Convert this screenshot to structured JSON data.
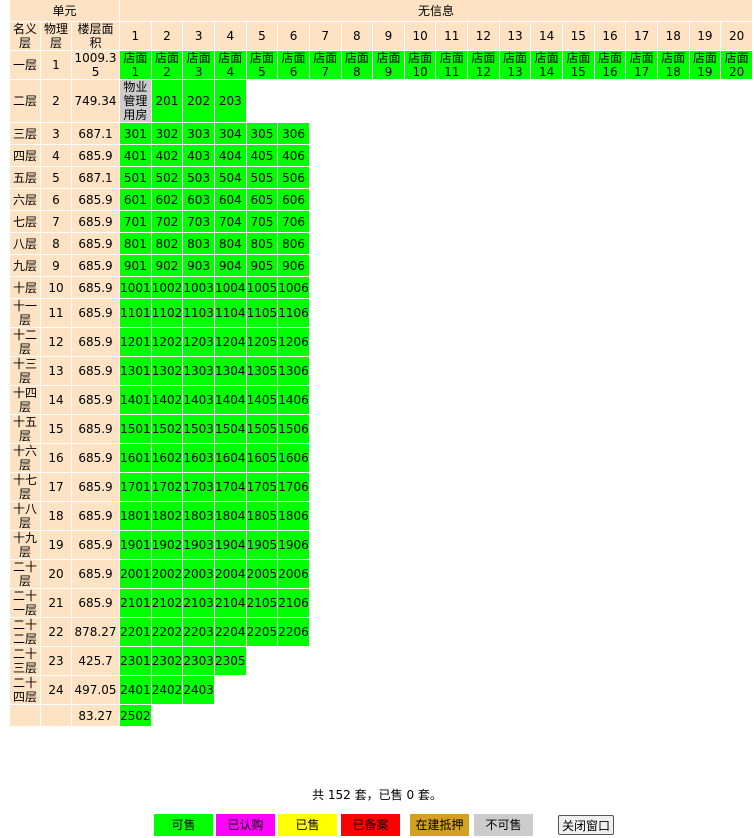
{
  "header": {
    "unit": "单元",
    "info": "无信息",
    "columns": [
      "名义层",
      "物理层",
      "楼层面积"
    ],
    "numbers": [
      1,
      2,
      3,
      4,
      5,
      6,
      7,
      8,
      9,
      10,
      11,
      12,
      13,
      14,
      15,
      16,
      17,
      18,
      19,
      20
    ]
  },
  "unit_color": "#00ff00",
  "rows": [
    {
      "name": "一层",
      "floor": 1,
      "area": 1009.35,
      "units": [
        "店面1",
        "店面2",
        "店面3",
        "店面4",
        "店面5",
        "店面6",
        "店面7",
        "店面8",
        "店面9",
        "店面10",
        "店面11",
        "店面12",
        "店面13",
        "店面14",
        "店面15",
        "店面16",
        "店面17",
        "店面18",
        "店面19",
        "店面20"
      ]
    },
    {
      "name": "二层",
      "floor": 2,
      "area": 749.34,
      "units": [
        {
          "label": "物业管理用房",
          "color": "#cccccc"
        },
        "201",
        "202",
        "203"
      ]
    },
    {
      "name": "三层",
      "floor": 3,
      "area": 687.1,
      "units": [
        "301",
        "302",
        "303",
        "304",
        "305",
        "306"
      ]
    },
    {
      "name": "四层",
      "floor": 4,
      "area": 685.9,
      "units": [
        "401",
        "402",
        "403",
        "404",
        "405",
        "406"
      ]
    },
    {
      "name": "五层",
      "floor": 5,
      "area": 687.1,
      "units": [
        "501",
        "502",
        "503",
        "504",
        "505",
        "506"
      ]
    },
    {
      "name": "六层",
      "floor": 6,
      "area": 685.9,
      "units": [
        "601",
        "602",
        "603",
        "604",
        "605",
        "606"
      ]
    },
    {
      "name": "七层",
      "floor": 7,
      "area": 685.9,
      "units": [
        "701",
        "702",
        "703",
        "704",
        "705",
        "706"
      ]
    },
    {
      "name": "八层",
      "floor": 8,
      "area": 685.9,
      "units": [
        "801",
        "802",
        "803",
        "804",
        "805",
        "806"
      ]
    },
    {
      "name": "九层",
      "floor": 9,
      "area": 685.9,
      "units": [
        "901",
        "902",
        "903",
        "904",
        "905",
        "906"
      ]
    },
    {
      "name": "十层",
      "floor": 10,
      "area": 685.9,
      "units": [
        "1001",
        "1002",
        "1003",
        "1004",
        "1005",
        "1006"
      ]
    },
    {
      "name": "十一层",
      "floor": 11,
      "area": 685.9,
      "units": [
        "1101",
        "1102",
        "1103",
        "1104",
        "1105",
        "1106"
      ]
    },
    {
      "name": "十二层",
      "floor": 12,
      "area": 685.9,
      "units": [
        "1201",
        "1202",
        "1203",
        "1204",
        "1205",
        "1206"
      ]
    },
    {
      "name": "十三层",
      "floor": 13,
      "area": 685.9,
      "units": [
        "1301",
        "1302",
        "1303",
        "1304",
        "1305",
        "1306"
      ]
    },
    {
      "name": "十四层",
      "floor": 14,
      "area": 685.9,
      "units": [
        "1401",
        "1402",
        "1403",
        "1404",
        "1405",
        "1406"
      ]
    },
    {
      "name": "十五层",
      "floor": 15,
      "area": 685.9,
      "units": [
        "1501",
        "1502",
        "1503",
        "1504",
        "1505",
        "1506"
      ]
    },
    {
      "name": "十六层",
      "floor": 16,
      "area": 685.9,
      "units": [
        "1601",
        "1602",
        "1603",
        "1604",
        "1605",
        "1606"
      ]
    },
    {
      "name": "十七层",
      "floor": 17,
      "area": 685.9,
      "units": [
        "1701",
        "1702",
        "1703",
        "1704",
        "1705",
        "1706"
      ]
    },
    {
      "name": "十八层",
      "floor": 18,
      "area": 685.9,
      "units": [
        "1801",
        "1802",
        "1803",
        "1804",
        "1805",
        "1806"
      ]
    },
    {
      "name": "十九层",
      "floor": 19,
      "area": 685.9,
      "units": [
        "1901",
        "1902",
        "1903",
        "1904",
        "1905",
        "1906"
      ]
    },
    {
      "name": "二十层",
      "floor": 20,
      "area": 685.9,
      "units": [
        "2001",
        "2002",
        "2003",
        "2004",
        "2005",
        "2006"
      ]
    },
    {
      "name": "二十一层",
      "floor": 21,
      "area": 685.9,
      "units": [
        "2101",
        "2102",
        "2103",
        "2104",
        "2105",
        "2106"
      ]
    },
    {
      "name": "二十二层",
      "floor": 22,
      "area": 878.27,
      "units": [
        "2201",
        "2202",
        "2203",
        "2204",
        "2205",
        "2206"
      ]
    },
    {
      "name": "二十三层",
      "floor": 23,
      "area": 425.7,
      "units": [
        "2301",
        "2302",
        "2303",
        "2305"
      ]
    },
    {
      "name": "二十四层",
      "floor": 24,
      "area": 497.05,
      "units": [
        "2401",
        "2402",
        "2403"
      ]
    },
    {
      "area": 83.27,
      "units": [
        "2502"
      ]
    }
  ],
  "summary": "共 152 套，已售 0 套。",
  "legend": [
    {
      "label": "可售",
      "color": "#00ff00"
    },
    {
      "label": "已认购",
      "color": "#ff00ff"
    },
    {
      "label": "已售",
      "color": "#ffff00"
    },
    {
      "label": "已备案",
      "color": "#ff0000"
    },
    {
      "label": "在建抵押",
      "color": "#d4a020"
    },
    {
      "label": "不可售",
      "color": "#cccccc"
    }
  ],
  "close_button": "关闭窗口"
}
